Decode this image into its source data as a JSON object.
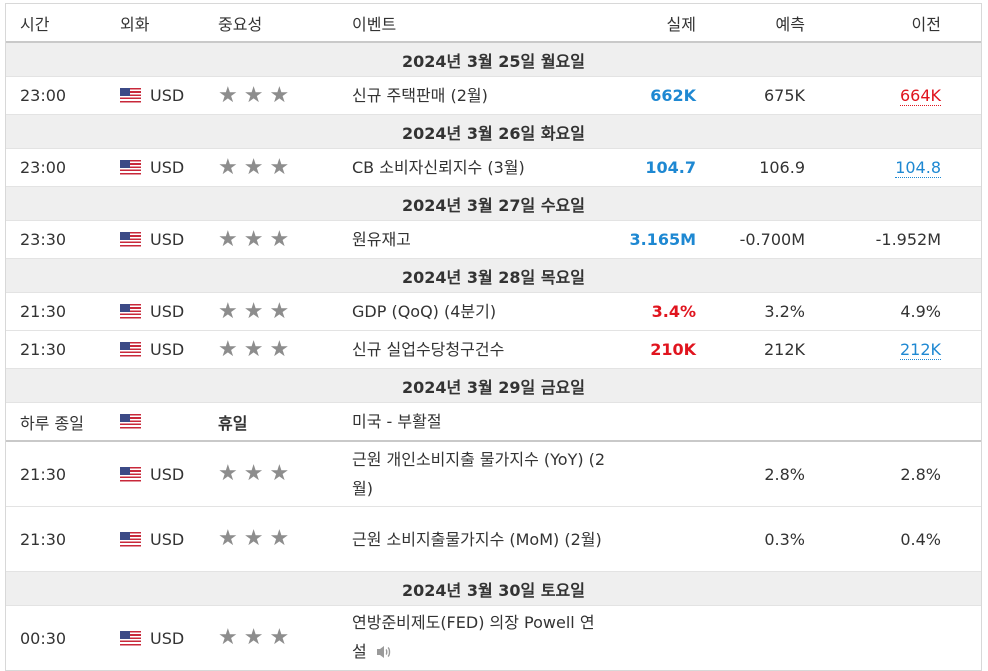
{
  "headers": {
    "time": "시간",
    "currency": "외화",
    "importance": "중요성",
    "event": "이벤트",
    "actual": "실제",
    "forecast": "예측",
    "previous": "이전"
  },
  "days": [
    {
      "label": "2024년 3월 25일 월요일",
      "events": [
        {
          "time": "23:00",
          "currency": "USD",
          "stars": "★★★",
          "name": "신규 주택판매 (2월)",
          "actual": "662K",
          "actual_color": "blue",
          "forecast": "675K",
          "previous": "664K",
          "previous_color": "red"
        }
      ]
    },
    {
      "label": "2024년 3월 26일 화요일",
      "events": [
        {
          "time": "23:00",
          "currency": "USD",
          "stars": "★★★",
          "name": "CB 소비자신뢰지수 (3월)",
          "actual": "104.7",
          "actual_color": "blue",
          "forecast": "106.9",
          "previous": "104.8",
          "previous_color": "blue"
        }
      ]
    },
    {
      "label": "2024년 3월 27일 수요일",
      "events": [
        {
          "time": "23:30",
          "currency": "USD",
          "stars": "★★★",
          "name": "원유재고",
          "actual": "3.165M",
          "actual_color": "blue",
          "forecast": "-0.700M",
          "previous": "-1.952M",
          "previous_color": "plain"
        }
      ]
    },
    {
      "label": "2024년 3월 28일 목요일",
      "events": [
        {
          "time": "21:30",
          "currency": "USD",
          "stars": "★★★",
          "name": "GDP (QoQ) (4분기)",
          "actual": "3.4%",
          "actual_color": "red",
          "forecast": "3.2%",
          "previous": "4.9%",
          "previous_color": "plain"
        },
        {
          "time": "21:30",
          "currency": "USD",
          "stars": "★★★",
          "name": "신규 실업수당청구건수",
          "actual": "210K",
          "actual_color": "red",
          "forecast": "212K",
          "previous": "212K",
          "previous_color": "blue"
        }
      ]
    },
    {
      "label": "2024년 3월 29일 금요일",
      "holiday": {
        "time": "하루 종일",
        "label": "휴일",
        "name": "미국 - 부활절"
      },
      "events": [
        {
          "time": "21:30",
          "currency": "USD",
          "stars": "★★★",
          "name": "근원 개인소비지출 물가지수 (YoY) (2월)",
          "actual": "",
          "actual_color": "plain",
          "forecast": "2.8%",
          "previous": "2.8%",
          "previous_color": "plain"
        },
        {
          "time": "21:30",
          "currency": "USD",
          "stars": "★★★",
          "name": "근원 소비지출물가지수 (MoM) (2월)",
          "actual": "",
          "actual_color": "plain",
          "forecast": "0.3%",
          "previous": "0.4%",
          "previous_color": "plain"
        }
      ]
    },
    {
      "label": "2024년 3월 30일 토요일",
      "events": [
        {
          "time": "00:30",
          "currency": "USD",
          "stars": "★★★",
          "name": "연방준비제도(FED) 의장 Powell 연설",
          "actual": "",
          "actual_color": "plain",
          "forecast": "",
          "previous": "",
          "previous_color": "plain",
          "speaker_icon": "speaker-icon"
        }
      ]
    }
  ]
}
